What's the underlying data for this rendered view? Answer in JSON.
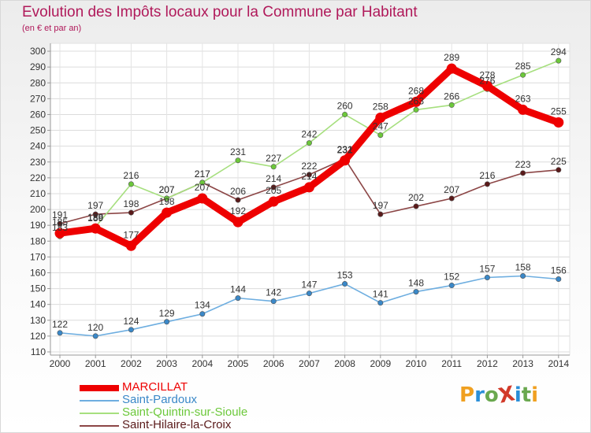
{
  "header": {
    "title": "Evolution des Impôts locaux pour la Commune par Habitant",
    "subtitle": "(en € et par an)"
  },
  "logo": {
    "text": "ProXiti",
    "colors": [
      "#f0a020",
      "#2b8fd8",
      "#6aa84f",
      "#d23a2a",
      "#2b8fd8",
      "#6aa84f",
      "#f0a020"
    ]
  },
  "chart_data": {
    "type": "line",
    "title": "Evolution des Impôts locaux pour la Commune par Habitant",
    "subtitle": "(en € et par an)",
    "xlabel": "",
    "ylabel": "",
    "categories": [
      "2000",
      "2001",
      "2002",
      "2003",
      "2004",
      "2005",
      "2006",
      "2007",
      "2008",
      "2009",
      "2010",
      "2011",
      "2012",
      "2013",
      "2014"
    ],
    "y_ticks": [
      110,
      120,
      130,
      140,
      150,
      160,
      170,
      180,
      190,
      200,
      210,
      220,
      230,
      240,
      250,
      260,
      270,
      280,
      290,
      300
    ],
    "ylim": [
      108,
      305
    ],
    "grid": true,
    "legend_position": "bottom-left",
    "series": [
      {
        "name": "MARCILLAT",
        "color": "#ee0000",
        "line_color": "#ee0000",
        "values": [
          185,
          188,
          177,
          198,
          207,
          192,
          205,
          214,
          231,
          258,
          268,
          289,
          278,
          263,
          255
        ]
      },
      {
        "name": "Saint-Pardoux",
        "color": "#3a88c8",
        "line_color": "#6eaee0",
        "values": [
          122,
          120,
          124,
          129,
          134,
          144,
          142,
          147,
          153,
          141,
          148,
          152,
          157,
          158,
          156
        ]
      },
      {
        "name": "Saint-Quintin-sur-Sioule",
        "color": "#6cc83a",
        "line_color": "#a6df7e",
        "values": [
          183,
          189,
          216,
          207,
          217,
          231,
          227,
          242,
          260,
          247,
          263,
          266,
          276,
          285,
          294
        ]
      },
      {
        "name": "Saint-Hilaire-la-Croix",
        "color": "#5a1a1a",
        "line_color": "#8c4646",
        "values": [
          191,
          197,
          198,
          207,
          217,
          206,
          214,
          222,
          232,
          197,
          202,
          207,
          216,
          223,
          225
        ]
      }
    ]
  }
}
